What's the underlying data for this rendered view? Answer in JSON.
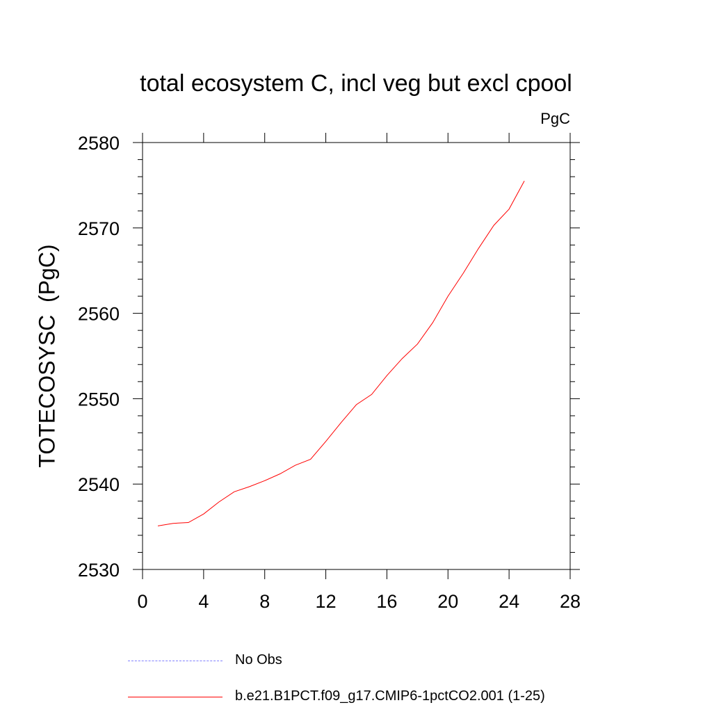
{
  "chart_data": {
    "type": "line",
    "title": "total ecosystem C, incl veg but excl cpool",
    "units": "PgC",
    "xlabel": "",
    "ylabel": "TOTECOSYSC  (PgC)",
    "xlim": [
      0,
      28
    ],
    "ylim": [
      2530,
      2580
    ],
    "xticks": [
      0,
      4,
      8,
      12,
      16,
      20,
      24,
      28
    ],
    "yticks": [
      2530,
      2540,
      2550,
      2560,
      2570,
      2580
    ],
    "grid": false,
    "legend_placement": "bottom",
    "series": [
      {
        "name": "No Obs",
        "color": "#8080ff",
        "dash": "dashed",
        "x": [],
        "values": []
      },
      {
        "name": "b.e21.B1PCT.f09_g17.CMIP6-1pctCO2.001 (1-25)",
        "color": "#ff0000",
        "dash": "solid",
        "x": [
          1,
          2,
          3,
          4,
          5,
          6,
          7,
          8,
          9,
          10,
          11,
          12,
          13,
          14,
          15,
          16,
          17,
          18,
          19,
          20,
          21,
          22,
          23,
          24,
          25
        ],
        "values": [
          2535.1,
          2535.4,
          2535.5,
          2536.5,
          2537.9,
          2539.1,
          2539.7,
          2540.4,
          2541.2,
          2542.2,
          2542.9,
          2545.0,
          2547.2,
          2549.3,
          2550.5,
          2552.7,
          2554.7,
          2556.4,
          2558.9,
          2562.0,
          2564.7,
          2567.6,
          2570.3,
          2572.2,
          2575.5
        ]
      }
    ]
  }
}
